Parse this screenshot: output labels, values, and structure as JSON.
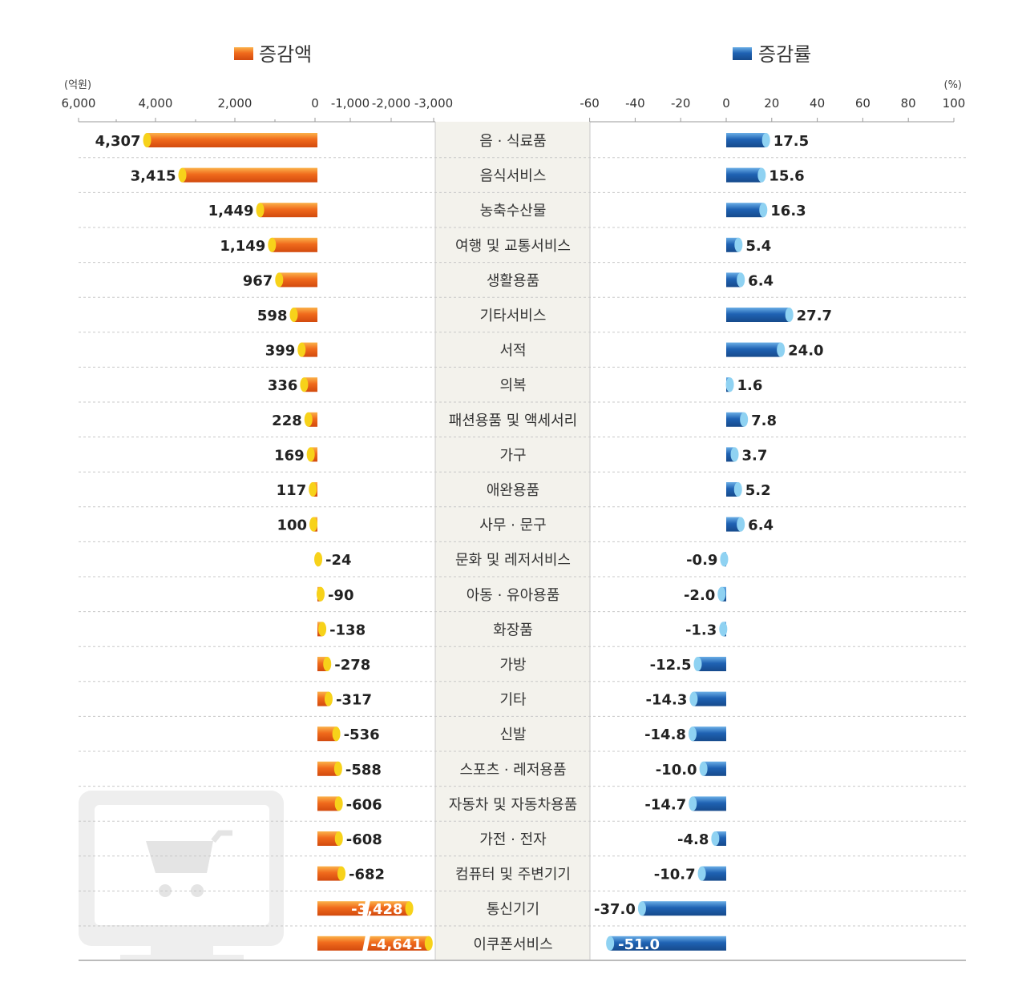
{
  "legend": {
    "amount_label": "증감액",
    "rate_label": "증감률"
  },
  "left_axis": {
    "unit": "(억원)",
    "ticks": [
      "6,000",
      "4,000",
      "2,000",
      "0",
      "-1,000",
      "-2,000",
      "-3,000"
    ]
  },
  "right_axis": {
    "unit": "(%)",
    "ticks": [
      "-60",
      "-40",
      "-20",
      "0",
      "20",
      "40",
      "60",
      "80",
      "100"
    ]
  },
  "colors": {
    "amount_bar": "#f06a1c",
    "amount_cap": "#f7d21a",
    "rate_bar": "#1f62b3",
    "rate_cap": "#8fd2f2",
    "center_band": "#f3f2ec",
    "grid": "#c8c8c8",
    "watermark": "#eeeeee"
  },
  "watermark_icon": "monitor-shopping-cart-icon",
  "chart_data": {
    "type": "bar",
    "categories": [
      "음 · 식료품",
      "음식서비스",
      "농축수산물",
      "여행 및 교통서비스",
      "생활용품",
      "기타서비스",
      "서적",
      "의복",
      "패션용품 및 액세서리",
      "가구",
      "애완용품",
      "사무 · 문구",
      "문화 및 레저서비스",
      "아동 · 유아용품",
      "화장품",
      "가방",
      "기타",
      "신발",
      "스포츠 · 레저용품",
      "자동차 및 자동차용품",
      "가전 · 전자",
      "컴퓨터 및 주변기기",
      "통신기기",
      "이쿠폰서비스"
    ],
    "series": [
      {
        "name": "증감액",
        "unit": "억원",
        "values": [
          4307,
          3415,
          1449,
          1149,
          967,
          598,
          399,
          336,
          228,
          169,
          117,
          100,
          -24,
          -90,
          -138,
          -278,
          -317,
          -536,
          -588,
          -606,
          -608,
          -682,
          -3428,
          -4641
        ],
        "labels": [
          "4,307",
          "3,415",
          "1,449",
          "1,149",
          "967",
          "598",
          "399",
          "336",
          "228",
          "169",
          "117",
          "100",
          "-24",
          "-90",
          "-138",
          "-278",
          "-317",
          "-536",
          "-588",
          "-606",
          "-608",
          "-682",
          "-3,428",
          "-4,641"
        ],
        "axis_positive_range": [
          0,
          6000
        ],
        "axis_negative_range": [
          0,
          -3000
        ],
        "axis_break_below": -1000
      },
      {
        "name": "증감률",
        "unit": "%",
        "values": [
          17.5,
          15.6,
          16.3,
          5.4,
          6.4,
          27.7,
          24.0,
          1.6,
          7.8,
          3.7,
          5.2,
          6.4,
          -0.9,
          -2.0,
          -1.3,
          -12.5,
          -14.3,
          -14.8,
          -10.0,
          -14.7,
          -4.8,
          -10.7,
          -37.0,
          -51.0
        ],
        "labels": [
          "17.5",
          "15.6",
          "16.3",
          "5.4",
          "6.4",
          "27.7",
          "24.0",
          "1.6",
          "7.8",
          "3.7",
          "5.2",
          "6.4",
          "-0.9",
          "-2.0",
          "-1.3",
          "-12.5",
          "-14.3",
          "-14.8",
          "-10.0",
          "-14.7",
          "-4.8",
          "-10.7",
          "-37.0",
          "-51.0"
        ],
        "xlim": [
          -60,
          100
        ]
      }
    ],
    "grid": true,
    "legend_position": "top"
  }
}
